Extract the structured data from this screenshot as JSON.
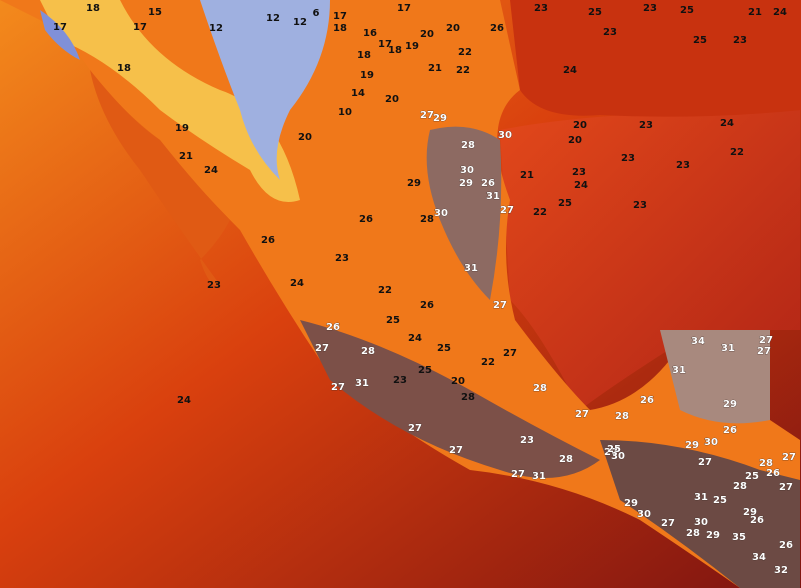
{
  "labels": [
    18,
    17,
    15,
    12,
    12,
    12,
    6,
    17,
    17,
    18,
    16,
    17,
    18,
    19,
    20,
    20,
    22,
    21,
    22,
    18,
    19,
    14,
    20,
    10,
    20,
    19,
    18,
    17,
    21,
    24,
    26,
    23,
    26,
    29,
    28,
    22,
    26,
    25,
    24,
    25,
    23,
    25,
    20,
    22,
    27,
    28,
    24,
    23,
    24,
    23,
    24,
    25,
    23,
    21,
    20,
    20,
    23,
    23,
    23,
    22,
    24,
    25,
    23,
    25,
    23,
    25,
    24,
    26,
    23,
    22,
    21,
    24,
    23,
    30,
    31,
    31,
    27,
    28,
    27,
    26,
    28,
    23,
    27,
    27,
    28,
    27,
    31,
    27,
    30,
    25,
    26,
    27,
    28,
    31,
    27,
    34,
    31,
    27,
    27,
    31,
    29,
    26,
    29,
    30,
    27,
    28,
    26,
    27,
    27,
    28,
    25,
    29,
    31,
    25,
    29,
    26,
    30,
    27,
    28,
    29,
    35,
    34,
    32,
    26,
    30,
    30,
    29,
    30,
    27,
    28,
    26,
    27,
    29
  ]
}
